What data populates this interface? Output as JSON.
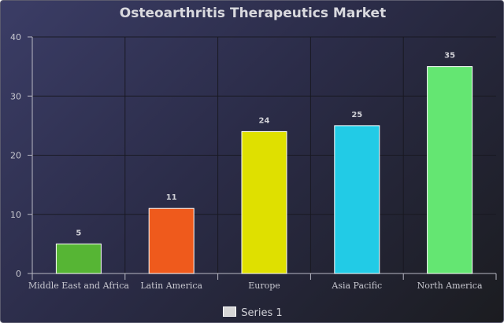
{
  "chart_data": {
    "type": "bar",
    "title": "Osteoarthritis Therapeutics Market",
    "categories": [
      "Middle East and Africa",
      "Latin America",
      "Europe",
      "Asia Pacific",
      "North America"
    ],
    "series": [
      {
        "name": "Series 1",
        "values": [
          5,
          11,
          24,
          25,
          35
        ],
        "colors": [
          "#56b534",
          "#ef5a1c",
          "#dfe000",
          "#22cbe6",
          "#64e672"
        ]
      }
    ],
    "ylim": [
      0,
      40
    ],
    "yticks": [
      0,
      10,
      20,
      30,
      40
    ],
    "grid": true,
    "data_labels": true,
    "legend_position": "bottom"
  }
}
